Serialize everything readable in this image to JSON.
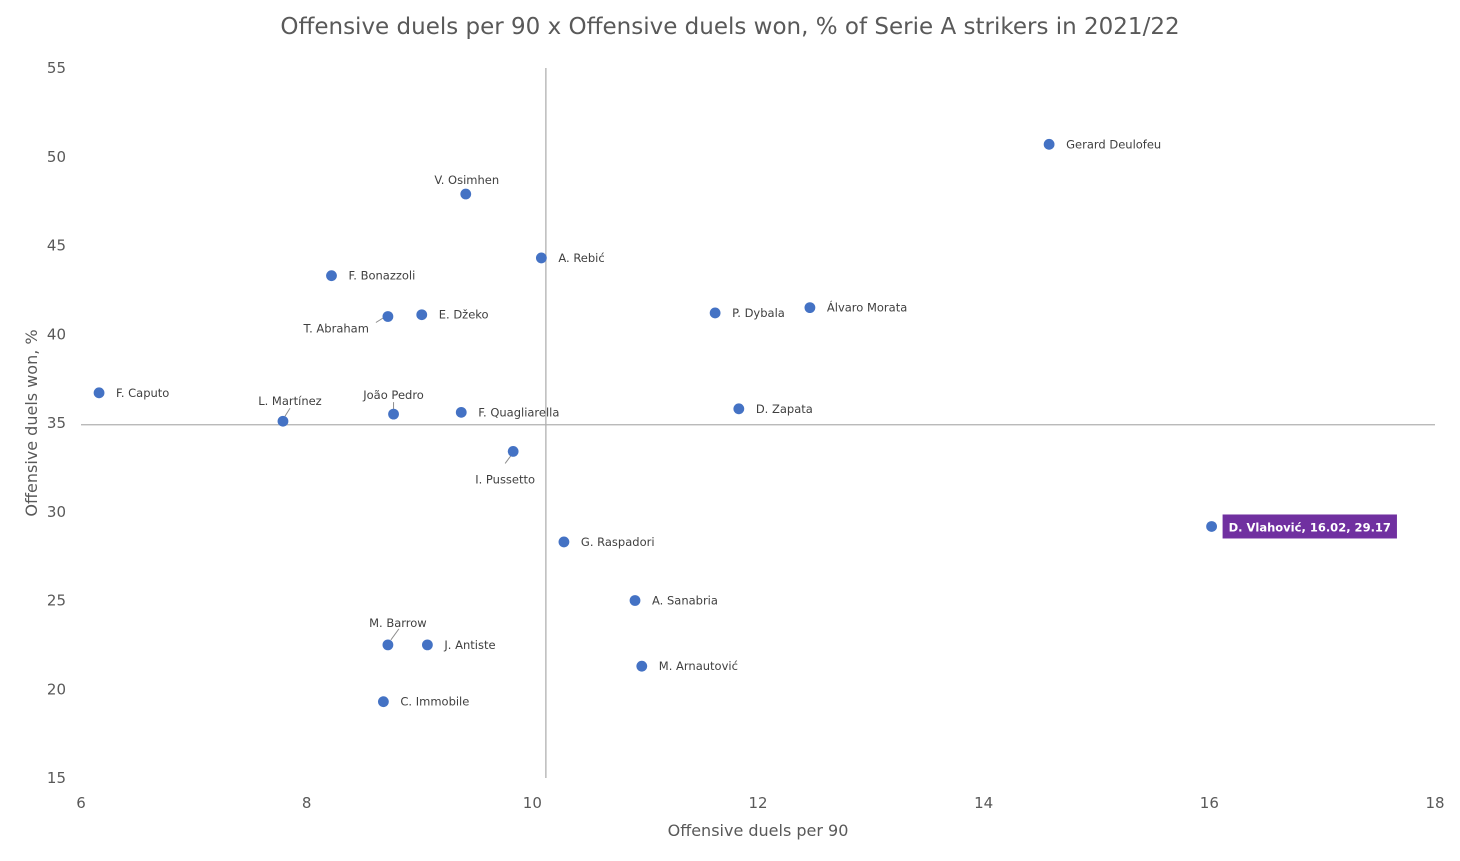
{
  "chart_data": {
    "type": "scatter",
    "title": "Offensive duels per 90 x Offensive duels won, % of Serie A strikers in 2021/22",
    "xlabel": "Offensive duels per 90",
    "ylabel": "Offensive duels won, %",
    "xlim": [
      6,
      18
    ],
    "ylim": [
      15,
      55
    ],
    "xticks": [
      "6",
      "8",
      "10",
      "12",
      "14",
      "16",
      "18"
    ],
    "yticks": [
      "15",
      "20",
      "25",
      "30",
      "35",
      "40",
      "45",
      "50",
      "55"
    ],
    "grid": false,
    "reference_lines": {
      "x": 10.12,
      "y": 34.9
    },
    "point_color": "#4472C4",
    "highlight_color": "#7030A0",
    "points": [
      {
        "label": "Gerard Deulofeu",
        "x": 14.58,
        "y": 50.7
      },
      {
        "label": "V. Osimhen",
        "x": 9.41,
        "y": 47.9
      },
      {
        "label": "A. Rebić",
        "x": 10.08,
        "y": 44.3
      },
      {
        "label": "F. Bonazzoli",
        "x": 8.22,
        "y": 43.3
      },
      {
        "label": "Álvaro Morata",
        "x": 12.46,
        "y": 41.5
      },
      {
        "label": "P. Dybala",
        "x": 11.62,
        "y": 41.2
      },
      {
        "label": "E. Džeko",
        "x": 9.02,
        "y": 41.1
      },
      {
        "label": "T. Abraham",
        "x": 8.72,
        "y": 41.0
      },
      {
        "label": "F. Caputo",
        "x": 6.16,
        "y": 36.7
      },
      {
        "label": "D. Zapata",
        "x": 11.83,
        "y": 35.8
      },
      {
        "label": "F. Quagliarella",
        "x": 9.37,
        "y": 35.6
      },
      {
        "label": "João Pedro",
        "x": 8.77,
        "y": 35.5
      },
      {
        "label": "L. Martínez",
        "x": 7.79,
        "y": 35.1
      },
      {
        "label": "I. Pussetto",
        "x": 9.83,
        "y": 33.4
      },
      {
        "label": "G. Raspadori",
        "x": 10.28,
        "y": 28.3
      },
      {
        "label": "A. Sanabria",
        "x": 10.91,
        "y": 25.0
      },
      {
        "label": "M. Barrow",
        "x": 8.72,
        "y": 22.5
      },
      {
        "label": "J. Antiste",
        "x": 9.07,
        "y": 22.5
      },
      {
        "label": "M. Arnautović",
        "x": 10.97,
        "y": 21.3
      },
      {
        "label": "C. Immobile",
        "x": 8.68,
        "y": 19.3
      },
      {
        "label": "D. Vlahović, 16.02, 29.17",
        "x": 16.02,
        "y": 29.17,
        "highlight": true
      }
    ]
  }
}
